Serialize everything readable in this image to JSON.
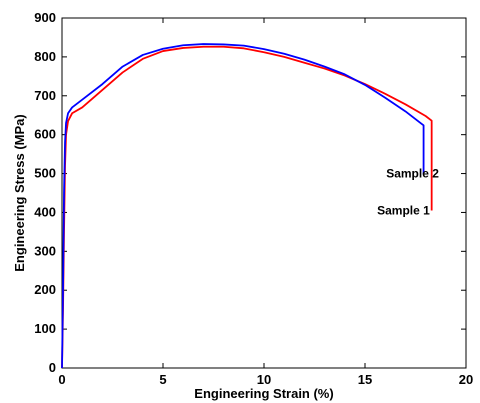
{
  "chart_data": {
    "type": "line",
    "title": "",
    "xlabel": "Engineering Strain (%)",
    "ylabel": "Engineering Stress (MPa)",
    "xlim": [
      0,
      20
    ],
    "ylim": [
      0,
      900
    ],
    "xticks": [
      "0",
      "5",
      "10",
      "15",
      "20"
    ],
    "yticks": [
      "0",
      "100",
      "200",
      "300",
      "400",
      "500",
      "600",
      "700",
      "800",
      "900"
    ],
    "grid": false,
    "legend": "none",
    "series": [
      {
        "name": "Sample 1",
        "color": "#ff0000",
        "x": [
          0,
          0.05,
          0.1,
          0.15,
          0.2,
          0.3,
          0.5,
          1,
          2,
          3,
          4,
          5,
          6,
          7,
          8,
          9,
          10,
          11,
          12,
          13,
          14,
          15,
          16,
          17,
          18,
          18.3,
          18.3
        ],
        "y": [
          0,
          150,
          350,
          520,
          600,
          635,
          655,
          670,
          715,
          760,
          795,
          815,
          823,
          826,
          826,
          822,
          812,
          800,
          785,
          770,
          752,
          730,
          705,
          678,
          648,
          636,
          405
        ]
      },
      {
        "name": "Sample 2",
        "color": "#0000ff",
        "x": [
          0,
          0.05,
          0.1,
          0.15,
          0.2,
          0.3,
          0.5,
          1,
          2,
          3,
          4,
          5,
          6,
          7,
          8,
          9,
          10,
          11,
          12,
          13,
          14,
          15,
          16,
          17,
          17.8,
          17.9,
          17.9
        ],
        "y": [
          0,
          200,
          450,
          580,
          630,
          655,
          670,
          690,
          730,
          775,
          805,
          821,
          830,
          833,
          832,
          829,
          820,
          808,
          793,
          775,
          755,
          728,
          695,
          660,
          628,
          624,
          498
        ]
      }
    ],
    "annotations": [
      {
        "text": "Sample 2",
        "x": 16.05,
        "y": 490
      },
      {
        "text": "Sample 1",
        "x": 15.6,
        "y": 395
      }
    ]
  }
}
